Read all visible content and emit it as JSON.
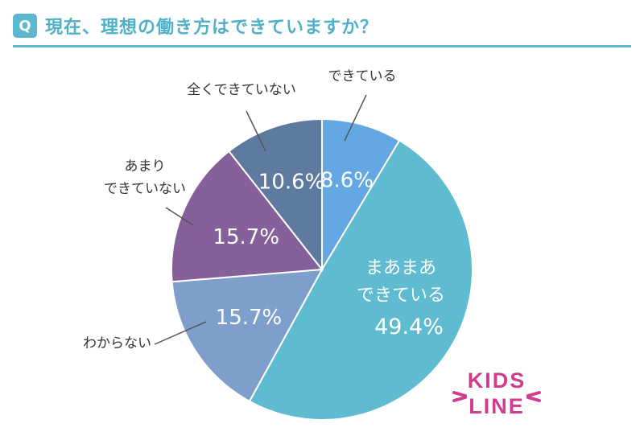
{
  "question": {
    "badge": "Q",
    "title": "現在、理想の働き方はできていますか？"
  },
  "chart_data": {
    "type": "pie",
    "title": "現在、理想の働き方はできていますか？",
    "slices": [
      {
        "label": "できている",
        "value": 8.6,
        "display": "8.6%",
        "color": "#63a8e3"
      },
      {
        "label": "まあまあ\nできている",
        "value": 49.4,
        "display": "49.4%",
        "color": "#5fbbd0"
      },
      {
        "label": "わからない",
        "value": 15.7,
        "display": "15.7%",
        "color": "#7e9fcb"
      },
      {
        "label": "あまり\nできていない",
        "value": 15.7,
        "display": "15.7%",
        "color": "#86609a"
      },
      {
        "label": "全くできていない",
        "value": 10.6,
        "display": "10.6%",
        "color": "#5f7a9f"
      }
    ],
    "start_angle": "12 o'clock",
    "direction": "clockwise"
  },
  "logo": {
    "line1": "KIDS",
    "line2": "LINE",
    "color": "#d23c8e"
  }
}
